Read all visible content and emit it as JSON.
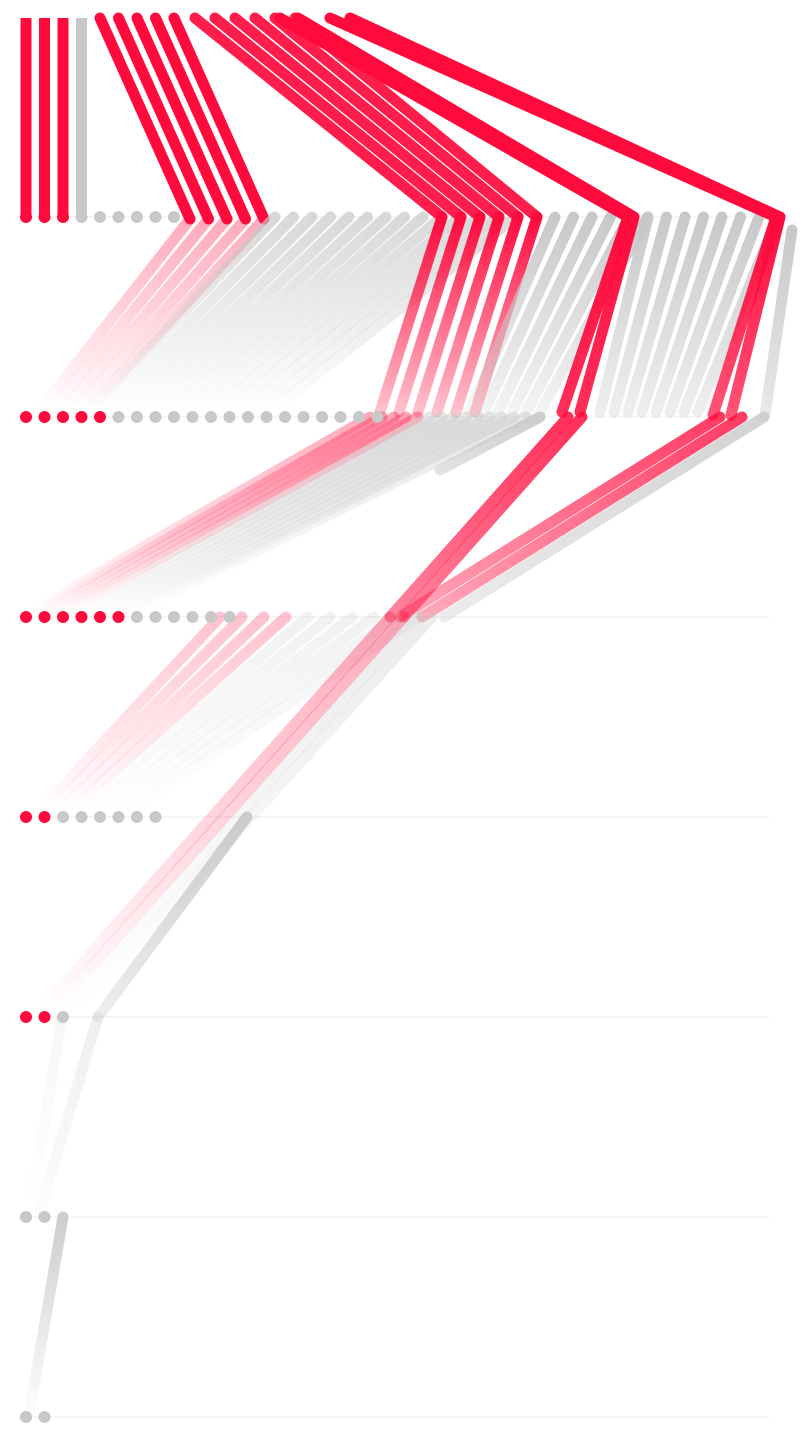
{
  "chart_data": {
    "type": "flow",
    "colors": {
      "highlight": "#ff0a3c",
      "neutral": "#c8c8c8",
      "rule": "#ececec"
    },
    "rows": [
      {
        "dots": [
          "h",
          "h",
          "h",
          "n",
          "n",
          "n",
          "n",
          "n",
          "n"
        ]
      },
      {
        "dots": [
          "h",
          "h",
          "h",
          "h",
          "h",
          "n",
          "n",
          "n",
          "n",
          "n",
          "n",
          "n",
          "n",
          "n",
          "n",
          "n",
          "n",
          "n",
          "n",
          "n"
        ]
      },
      {
        "dots": [
          "h",
          "h",
          "h",
          "h",
          "h",
          "h",
          "n",
          "n",
          "n",
          "n",
          "n",
          "n"
        ]
      },
      {
        "dots": [
          "h",
          "h",
          "n",
          "n",
          "n",
          "n",
          "n",
          "n"
        ]
      },
      {
        "dots": [
          "h",
          "h",
          "n"
        ]
      },
      {
        "dots": [
          "n",
          "n"
        ]
      },
      {
        "dots": [
          "n",
          "n"
        ]
      }
    ],
    "incoming_top_lines": {
      "highlight": 24,
      "neutral": 1
    }
  }
}
